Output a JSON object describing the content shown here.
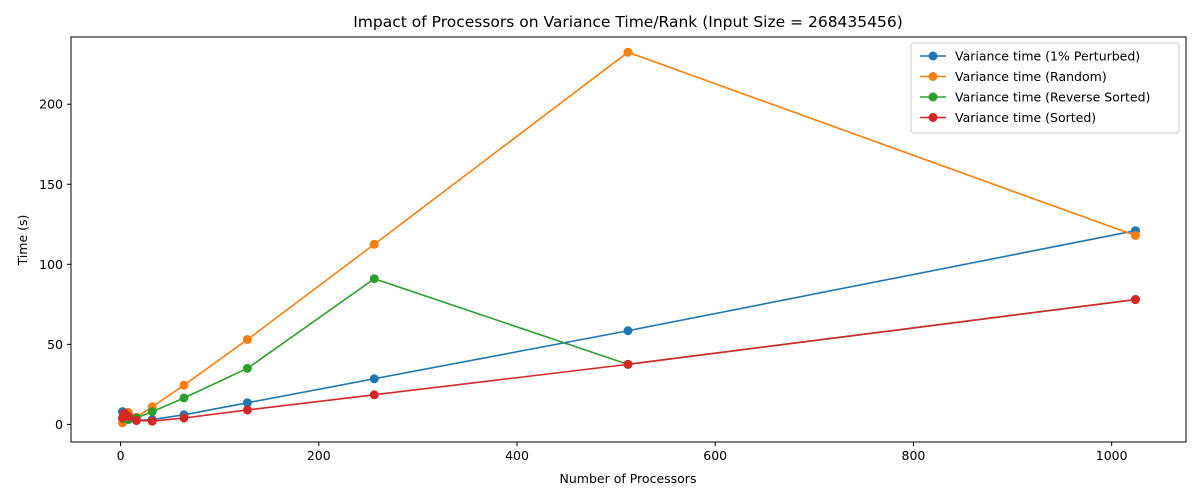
{
  "chart_data": {
    "type": "line",
    "title": "Impact of Processors on Variance Time/Rank (Input Size = 268435456)",
    "xlabel": "Number of Processors",
    "ylabel": "Time (s)",
    "xlim": [
      -50,
      1075
    ],
    "ylim": [
      -11,
      242
    ],
    "xticks": [
      0,
      200,
      400,
      600,
      800,
      1000
    ],
    "yticks": [
      0,
      50,
      100,
      150,
      200
    ],
    "grid": false,
    "legend_position": "top-right",
    "x": [
      2,
      4,
      8,
      16,
      32,
      64,
      128,
      256,
      512,
      1024
    ],
    "series": [
      {
        "name": "Variance time (1% Perturbed)",
        "color": "#1f77b4",
        "values": [
          8.0,
          5.0,
          3.5,
          2.5,
          3.0,
          6.0,
          13.5,
          28.5,
          58.5,
          121.0
        ]
      },
      {
        "name": "Variance time (Random)",
        "color": "#ff7f0e",
        "values": [
          1.0,
          3.0,
          7.5,
          4.5,
          11.0,
          24.5,
          53.0,
          112.5,
          232.5,
          118.0
        ]
      },
      {
        "name": "Variance time (Reverse Sorted)",
        "color": "#2ca02c",
        "values": [
          4.0,
          3.5,
          3.0,
          4.0,
          8.0,
          16.5,
          35.0,
          91.0,
          37.5,
          78.0
        ]
      },
      {
        "name": "Variance time (Sorted)",
        "color": "#d62728",
        "values": [
          4.0,
          7.0,
          5.0,
          2.5,
          2.0,
          4.0,
          9.0,
          18.5,
          37.5,
          78.0
        ]
      }
    ]
  }
}
